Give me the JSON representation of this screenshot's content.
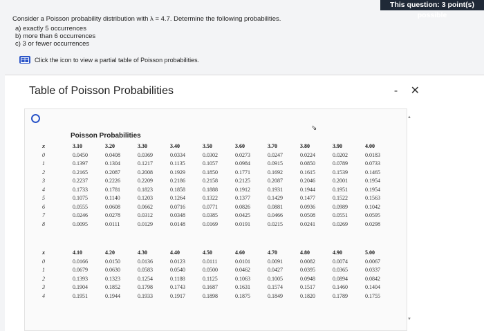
{
  "badge": "This question: 3 point(s) possible",
  "question": "Consider a Poisson probability distribution with λ = 4.7. Determine the following probabilities.",
  "parts": [
    "a) exactly 5 occurrences",
    "b) more than 6 occurrences",
    "c) 3 or fewer occurrences"
  ],
  "hint": "Click the icon to view a partial table of Poisson probabilities.",
  "modal": {
    "title": "Table of Poisson Probabilities",
    "minimize": "-",
    "close": "✕"
  },
  "table_title": "Poisson Probabilities",
  "table1": {
    "x_label": "x",
    "headers": [
      "3.10",
      "3.20",
      "3.30",
      "3.40",
      "3.50",
      "3.60",
      "3.70",
      "3.80",
      "3.90",
      "4.00"
    ],
    "rows": [
      {
        "x": "0",
        "v": [
          "0.0450",
          "0.0408",
          "0.0369",
          "0.0334",
          "0.0302",
          "0.0273",
          "0.0247",
          "0.0224",
          "0.0202",
          "0.0183"
        ]
      },
      {
        "x": "1",
        "v": [
          "0.1397",
          "0.1304",
          "0.1217",
          "0.1135",
          "0.1057",
          "0.0984",
          "0.0915",
          "0.0850",
          "0.0789",
          "0.0733"
        ]
      },
      {
        "x": "2",
        "v": [
          "0.2165",
          "0.2087",
          "0.2008",
          "0.1929",
          "0.1850",
          "0.1771",
          "0.1692",
          "0.1615",
          "0.1539",
          "0.1465"
        ]
      },
      {
        "x": "3",
        "v": [
          "0.2237",
          "0.2226",
          "0.2209",
          "0.2186",
          "0.2158",
          "0.2125",
          "0.2087",
          "0.2046",
          "0.2001",
          "0.1954"
        ]
      },
      {
        "x": "4",
        "v": [
          "0.1733",
          "0.1781",
          "0.1823",
          "0.1858",
          "0.1888",
          "0.1912",
          "0.1931",
          "0.1944",
          "0.1951",
          "0.1954"
        ]
      },
      {
        "x": "5",
        "v": [
          "0.1075",
          "0.1140",
          "0.1203",
          "0.1264",
          "0.1322",
          "0.1377",
          "0.1429",
          "0.1477",
          "0.1522",
          "0.1563"
        ]
      },
      {
        "x": "6",
        "v": [
          "0.0555",
          "0.0608",
          "0.0662",
          "0.0716",
          "0.0771",
          "0.0826",
          "0.0881",
          "0.0936",
          "0.0989",
          "0.1042"
        ]
      },
      {
        "x": "7",
        "v": [
          "0.0246",
          "0.0278",
          "0.0312",
          "0.0348",
          "0.0385",
          "0.0425",
          "0.0466",
          "0.0508",
          "0.0551",
          "0.0595"
        ]
      },
      {
        "x": "8",
        "v": [
          "0.0095",
          "0.0111",
          "0.0129",
          "0.0148",
          "0.0169",
          "0.0191",
          "0.0215",
          "0.0241",
          "0.0269",
          "0.0298"
        ]
      }
    ]
  },
  "table2": {
    "x_label": "x",
    "headers": [
      "4.10",
      "4.20",
      "4.30",
      "4.40",
      "4.50",
      "4.60",
      "4.70",
      "4.80",
      "4.90",
      "5.00"
    ],
    "rows": [
      {
        "x": "0",
        "v": [
          "0.0166",
          "0.0150",
          "0.0136",
          "0.0123",
          "0.0111",
          "0.0101",
          "0.0091",
          "0.0082",
          "0.0074",
          "0.0067"
        ]
      },
      {
        "x": "1",
        "v": [
          "0.0679",
          "0.0630",
          "0.0583",
          "0.0540",
          "0.0500",
          "0.0462",
          "0.0427",
          "0.0395",
          "0.0365",
          "0.0337"
        ]
      },
      {
        "x": "2",
        "v": [
          "0.1393",
          "0.1323",
          "0.1254",
          "0.1188",
          "0.1125",
          "0.1063",
          "0.1005",
          "0.0948",
          "0.0894",
          "0.0842"
        ]
      },
      {
        "x": "3",
        "v": [
          "0.1904",
          "0.1852",
          "0.1798",
          "0.1743",
          "0.1687",
          "0.1631",
          "0.1574",
          "0.1517",
          "0.1460",
          "0.1404"
        ]
      },
      {
        "x": "4",
        "v": [
          "0.1951",
          "0.1944",
          "0.1933",
          "0.1917",
          "0.1898",
          "0.1875",
          "0.1849",
          "0.1820",
          "0.1789",
          "0.1755"
        ]
      }
    ]
  }
}
